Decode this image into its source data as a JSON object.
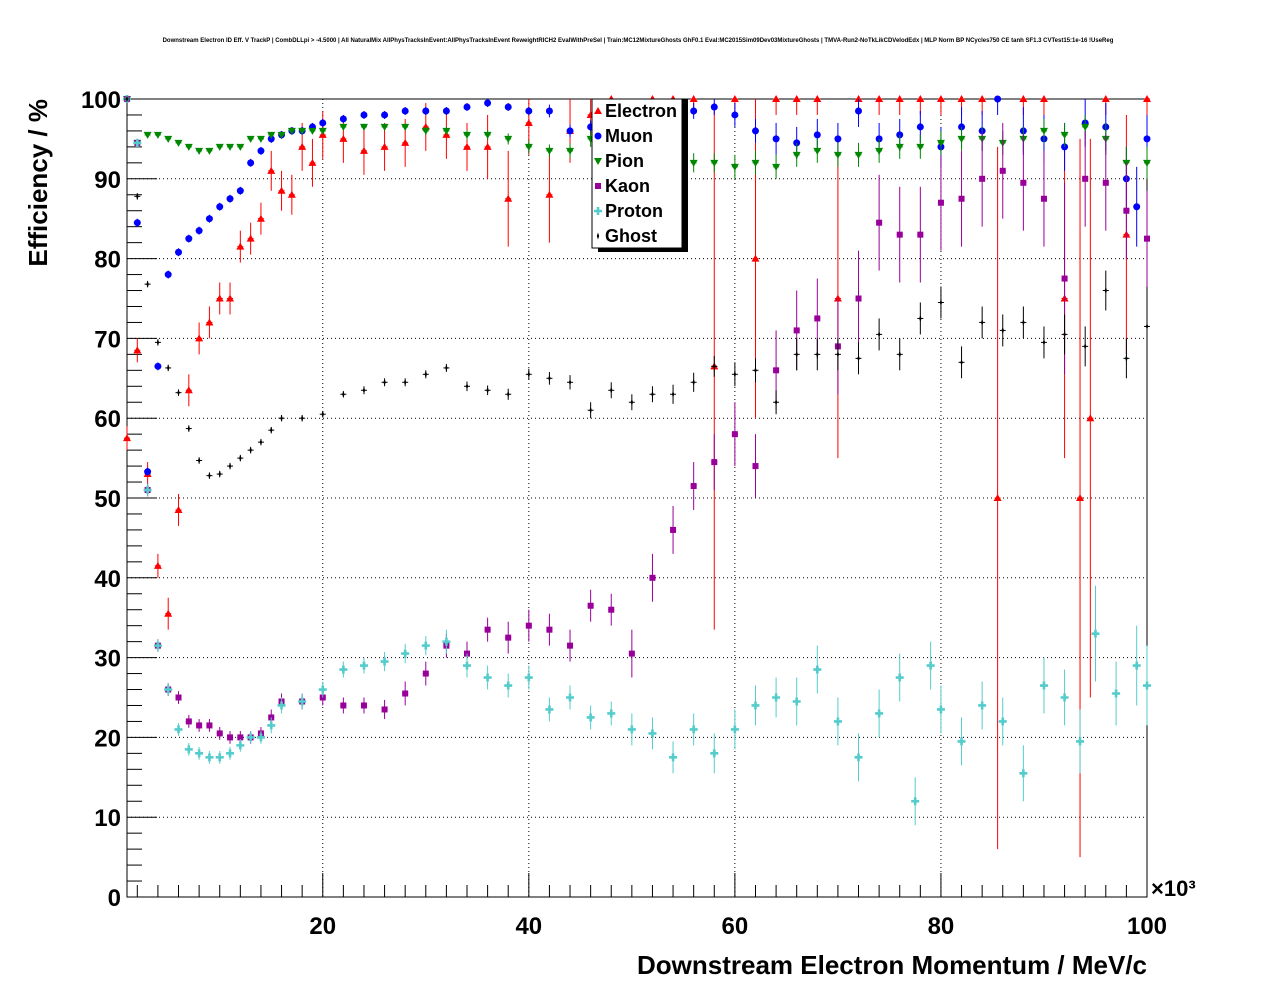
{
  "chart_data": {
    "type": "scatter",
    "title": "Downstream Electron ID Eff. V TrackP | CombDLLpi > -4.5000 | All NaturalMix AllPhysTracksInEvent:AllPhysTracksInEvent ReweightRICH2 EvalWithPreSel | Train:MC12MixtureGhosts GhF0.1 Eval:MC2015Sim09Dev03MixtureGhosts | TMVA-Run2-NoTkLikCDVelodEdx | MLP Norm BP NCycles750 CE tanh SF1.3 CVTest15:1e-16 !UseReg",
    "xlabel": "Downstream Electron Momentum / MeV/c",
    "ylabel": "Efficiency / %",
    "x_exponent_label": "×10³",
    "xlim": [
      1,
      100
    ],
    "ylim": [
      0,
      100
    ],
    "x_ticks": [
      20,
      40,
      60,
      80,
      100
    ],
    "y_ticks": [
      0,
      10,
      20,
      30,
      40,
      50,
      60,
      70,
      80,
      90,
      100
    ],
    "x_tick_labels": [
      "20",
      "40",
      "60",
      "80",
      "100"
    ],
    "y_tick_labels": [
      "0",
      "10",
      "20",
      "30",
      "40",
      "50",
      "60",
      "70",
      "80",
      "90",
      "100"
    ],
    "grid": true,
    "legend_position": "top-center",
    "series": [
      {
        "name": "Electron",
        "color": "#ff0000",
        "marker": "triangle-up",
        "x": [
          1,
          2,
          3,
          4,
          5,
          6,
          7,
          8,
          9,
          10,
          11,
          12,
          13,
          14,
          15,
          16,
          17,
          18,
          19,
          20,
          22,
          24,
          26,
          28,
          30,
          32,
          34,
          36,
          38,
          40,
          42,
          44,
          46,
          48,
          50,
          52,
          54,
          56,
          58,
          60,
          62,
          64,
          66,
          68,
          70,
          72,
          74,
          76,
          78,
          80,
          82,
          84,
          85.5,
          88,
          90,
          92,
          93.5,
          94.5,
          96,
          98,
          100
        ],
        "y": [
          57.5,
          68.5,
          53,
          41.5,
          35.5,
          48.5,
          63.5,
          70,
          72,
          75,
          75,
          81.5,
          82.5,
          85,
          91,
          88.5,
          88,
          94,
          92,
          95.5,
          95,
          93.5,
          94,
          94.5,
          96.5,
          95.5,
          94,
          94,
          87.5,
          97,
          88,
          96,
          98,
          100,
          90,
          100,
          100,
          100,
          66.5,
          100,
          80,
          100,
          100,
          100,
          75,
          100,
          100,
          100,
          100,
          100,
          100,
          100,
          50,
          100,
          100,
          75,
          50,
          60,
          100,
          83,
          100
        ],
        "err": [
          1.5,
          1.5,
          1.5,
          1.5,
          2,
          2,
          2,
          2,
          2,
          2,
          2,
          2,
          2,
          2,
          2.5,
          2.5,
          2.5,
          3,
          3,
          3,
          3,
          3,
          3,
          3,
          3,
          3,
          3,
          4,
          6,
          4,
          6,
          4,
          3,
          2,
          5,
          2,
          2,
          2,
          33,
          2,
          20,
          2,
          2,
          2,
          20,
          2,
          2,
          2,
          2,
          2,
          2,
          2,
          44,
          2,
          2,
          20,
          45,
          35,
          2,
          15,
          2
        ]
      },
      {
        "name": "Muon",
        "color": "#0000ff",
        "marker": "circle",
        "x": [
          1,
          2,
          3,
          4,
          5,
          6,
          7,
          8,
          9,
          10,
          11,
          12,
          13,
          14,
          15,
          16,
          17,
          18,
          19,
          20,
          22,
          24,
          26,
          28,
          30,
          32,
          34,
          36,
          38,
          40,
          42,
          44,
          46,
          48,
          50,
          52,
          54,
          56,
          58,
          60,
          62,
          64,
          66,
          68,
          70,
          72,
          74,
          76,
          78,
          80,
          82,
          84,
          85.5,
          88,
          90,
          92,
          94,
          96,
          98,
          99,
          100
        ],
        "y": [
          100,
          84.5,
          53.3,
          66.5,
          78,
          80.8,
          82.5,
          83.5,
          85,
          86.5,
          87.5,
          88.5,
          92,
          93.5,
          95,
          95.5,
          96,
          96,
          96.5,
          97,
          97.5,
          98,
          98,
          98.5,
          98.5,
          98.5,
          99,
          99.5,
          99,
          98.5,
          98.5,
          96,
          96.5,
          96,
          96,
          96.5,
          99,
          98.5,
          99,
          98,
          96,
          95,
          94.5,
          95.5,
          95,
          98.5,
          95,
          95.5,
          96.5,
          94,
          96.5,
          96,
          100,
          96,
          95,
          94,
          97,
          96.5,
          90,
          86.5,
          95
        ],
        "err": [
          0.5,
          0.5,
          0.5,
          0.5,
          0.5,
          0.5,
          0.5,
          0.5,
          0.5,
          0.5,
          0.5,
          0.5,
          0.5,
          0.5,
          0.5,
          0.5,
          0.5,
          0.5,
          0.5,
          0.5,
          0.5,
          0.5,
          0.5,
          0.5,
          0.5,
          0.5,
          0.5,
          0.5,
          0.5,
          0.5,
          0.8,
          0.8,
          0.8,
          1,
          1,
          1,
          1,
          1,
          1,
          1.5,
          1.5,
          2,
          2,
          2,
          2,
          2,
          2,
          2,
          2,
          2.5,
          2.5,
          2.5,
          2,
          3,
          3,
          3,
          3,
          3,
          4,
          5,
          3
        ]
      },
      {
        "name": "Pion",
        "color": "#008800",
        "marker": "triangle-down",
        "x": [
          1,
          2,
          3,
          4,
          5,
          6,
          7,
          8,
          9,
          10,
          11,
          12,
          13,
          14,
          15,
          16,
          17,
          18,
          19,
          20,
          22,
          24,
          26,
          28,
          30,
          32,
          34,
          36,
          38,
          40,
          42,
          44,
          46,
          48,
          50,
          52,
          54,
          56,
          58,
          60,
          62,
          64,
          66,
          68,
          70,
          72,
          74,
          76,
          78,
          80,
          82,
          84,
          86,
          88,
          90,
          92,
          94,
          96,
          98,
          100
        ],
        "y": [
          100,
          94.5,
          95.5,
          95.5,
          95,
          94.5,
          94,
          93.5,
          93.5,
          94,
          94,
          94,
          95,
          95,
          95.5,
          95.5,
          96,
          96,
          96,
          96,
          96.5,
          96.5,
          96.5,
          96.5,
          96,
          96,
          95.5,
          95.5,
          95,
          94,
          93.5,
          93.5,
          95,
          95.5,
          93.5,
          94,
          92.5,
          92,
          92,
          91.5,
          92,
          91.5,
          93,
          93.5,
          93,
          93,
          93.5,
          94,
          94,
          94.5,
          95,
          95,
          94.5,
          95,
          96,
          95.5,
          96.5,
          95,
          92,
          92
        ],
        "err": [
          0.3,
          0.3,
          0.3,
          0.3,
          0.3,
          0.3,
          0.3,
          0.3,
          0.3,
          0.3,
          0.3,
          0.3,
          0.3,
          0.3,
          0.3,
          0.3,
          0.3,
          0.3,
          0.3,
          0.3,
          0.4,
          0.4,
          0.4,
          0.4,
          0.5,
          0.5,
          0.6,
          0.6,
          0.7,
          0.8,
          0.8,
          0.9,
          1,
          1,
          1,
          1,
          1.2,
          1.2,
          1.2,
          1.5,
          1.5,
          1.5,
          1.5,
          1.5,
          1.5,
          1.5,
          1.5,
          1.5,
          1.5,
          1.5,
          1.5,
          1.5,
          1.5,
          1.5,
          1.5,
          1.5,
          1.5,
          2,
          2,
          2
        ]
      },
      {
        "name": "Kaon",
        "color": "#990099",
        "marker": "square",
        "x": [
          1,
          2,
          3,
          4,
          5,
          6,
          7,
          8,
          9,
          10,
          11,
          12,
          13,
          14,
          15,
          16,
          18,
          20,
          22,
          24,
          26,
          28,
          30,
          32,
          34,
          36,
          38,
          40,
          42,
          44,
          46,
          48,
          50,
          52,
          54,
          56,
          58,
          60,
          62,
          64,
          66,
          68,
          70,
          72,
          74,
          76,
          78,
          80,
          82,
          84,
          86,
          88,
          90,
          92,
          94,
          96,
          98,
          100
        ],
        "y": [
          100,
          94.5,
          51,
          31.5,
          26,
          25,
          22,
          21.5,
          21.5,
          20.5,
          20,
          20,
          20,
          20.5,
          22.5,
          24.5,
          24.5,
          25,
          24,
          24,
          23.5,
          25.5,
          28,
          31.5,
          30.5,
          33.5,
          32.5,
          34,
          33.5,
          31.5,
          36.5,
          36,
          30.5,
          40,
          46,
          51.5,
          54.5,
          58,
          54,
          66,
          71,
          72.5,
          69,
          75,
          84.5,
          83,
          83,
          87,
          87.5,
          90,
          91,
          89.5,
          87.5,
          77.5,
          90,
          89.5,
          86,
          82.5
        ],
        "err": [
          0.5,
          0.5,
          0.8,
          0.8,
          0.8,
          0.8,
          0.8,
          0.8,
          0.8,
          0.8,
          0.8,
          0.8,
          0.8,
          0.8,
          1,
          1,
          1,
          1,
          1,
          1,
          1.2,
          1.5,
          1.5,
          1.5,
          1.5,
          1.5,
          2,
          2,
          2,
          2,
          2,
          2,
          3,
          3,
          3,
          3,
          3.5,
          4,
          4,
          5,
          5,
          5,
          6,
          6,
          6,
          6,
          6,
          6,
          6,
          6,
          6,
          6,
          6,
          12,
          6,
          6,
          6,
          6
        ]
      },
      {
        "name": "Proton",
        "color": "#55cccc",
        "marker": "cross",
        "x": [
          1,
          2,
          3,
          4,
          5,
          6,
          7,
          8,
          9,
          10,
          11,
          12,
          13,
          14,
          15,
          16,
          18,
          20,
          22,
          24,
          26,
          28,
          30,
          32,
          34,
          36,
          38,
          40,
          42,
          44,
          46,
          48,
          50,
          52,
          54,
          56,
          58,
          60,
          62,
          64,
          66,
          68,
          70,
          72,
          74,
          76,
          77.5,
          79,
          80,
          82,
          84,
          86,
          88,
          90,
          92,
          93.5,
          95,
          97,
          99,
          100
        ],
        "y": [
          100,
          94.5,
          51,
          31.5,
          26,
          21,
          18.5,
          18,
          17.5,
          17.5,
          18,
          19,
          20,
          20,
          21.5,
          24,
          24.5,
          26,
          28.5,
          29,
          29.5,
          30.5,
          31.5,
          32,
          29,
          27.5,
          26.5,
          27.5,
          23.5,
          25,
          22.5,
          23,
          21,
          20.5,
          17.5,
          21,
          18,
          21,
          24,
          25,
          24.5,
          28.5,
          22,
          17.5,
          23,
          27.5,
          12,
          29,
          23.5,
          19.5,
          24,
          22,
          15.5,
          26.5,
          25,
          19.5,
          33,
          25.5,
          29,
          26.5
        ],
        "err": [
          0.5,
          0.5,
          0.8,
          0.8,
          0.8,
          0.8,
          0.8,
          0.8,
          0.8,
          0.8,
          0.8,
          0.8,
          0.8,
          0.8,
          1,
          1,
          1,
          1,
          1,
          1,
          1.2,
          1.2,
          1.2,
          1.5,
          1.5,
          1.5,
          1.5,
          1.5,
          1.5,
          1.5,
          1.5,
          1.5,
          2,
          2,
          2,
          2,
          2.5,
          2.5,
          2.5,
          2.5,
          3,
          3,
          3,
          3,
          3,
          3,
          3,
          3,
          3,
          3,
          3,
          3,
          3.5,
          3.5,
          3.5,
          4,
          6,
          4,
          5,
          5
        ]
      },
      {
        "name": "Ghost",
        "color": "#000000",
        "marker": "star",
        "x": [
          1,
          2,
          3,
          4,
          5,
          6,
          7,
          8,
          9,
          10,
          11,
          12,
          13,
          14,
          15,
          16,
          18,
          20,
          22,
          24,
          26,
          28,
          30,
          32,
          34,
          36,
          38,
          40,
          42,
          44,
          46,
          48,
          50,
          52,
          54,
          56,
          58,
          60,
          62,
          64,
          66,
          68,
          70,
          72,
          74,
          76,
          78,
          80,
          82,
          84,
          86,
          88,
          90,
          92,
          94,
          96,
          98,
          100
        ],
        "y": [
          100,
          87.8,
          76.8,
          69.5,
          66.3,
          63.2,
          58.7,
          54.7,
          52.8,
          53,
          54,
          55,
          56,
          57,
          58.5,
          60,
          60,
          60.5,
          63,
          63.5,
          64.5,
          64.5,
          65.5,
          66.3,
          64,
          63.5,
          63,
          65.5,
          65,
          64.5,
          61,
          63.5,
          62,
          63,
          63,
          64.5,
          66.5,
          65.5,
          66,
          62,
          68,
          68,
          68,
          67.5,
          70.5,
          68,
          72.5,
          74.5,
          67,
          72,
          71,
          72,
          69.5,
          70.5,
          69,
          76,
          67.5,
          71.5
        ],
        "err": [
          0.3,
          0.4,
          0.4,
          0.4,
          0.4,
          0.4,
          0.4,
          0.4,
          0.4,
          0.4,
          0.4,
          0.4,
          0.4,
          0.4,
          0.4,
          0.4,
          0.4,
          0.4,
          0.4,
          0.5,
          0.5,
          0.5,
          0.5,
          0.5,
          0.6,
          0.6,
          0.7,
          0.7,
          0.8,
          0.9,
          1,
          1,
          1,
          1,
          1.2,
          1.2,
          1.3,
          1.5,
          1.5,
          1.5,
          2,
          2,
          2,
          2,
          2,
          2,
          2,
          2,
          2,
          2,
          2,
          2,
          2,
          2.5,
          2.5,
          2.5,
          2.5,
          3
        ]
      }
    ]
  }
}
